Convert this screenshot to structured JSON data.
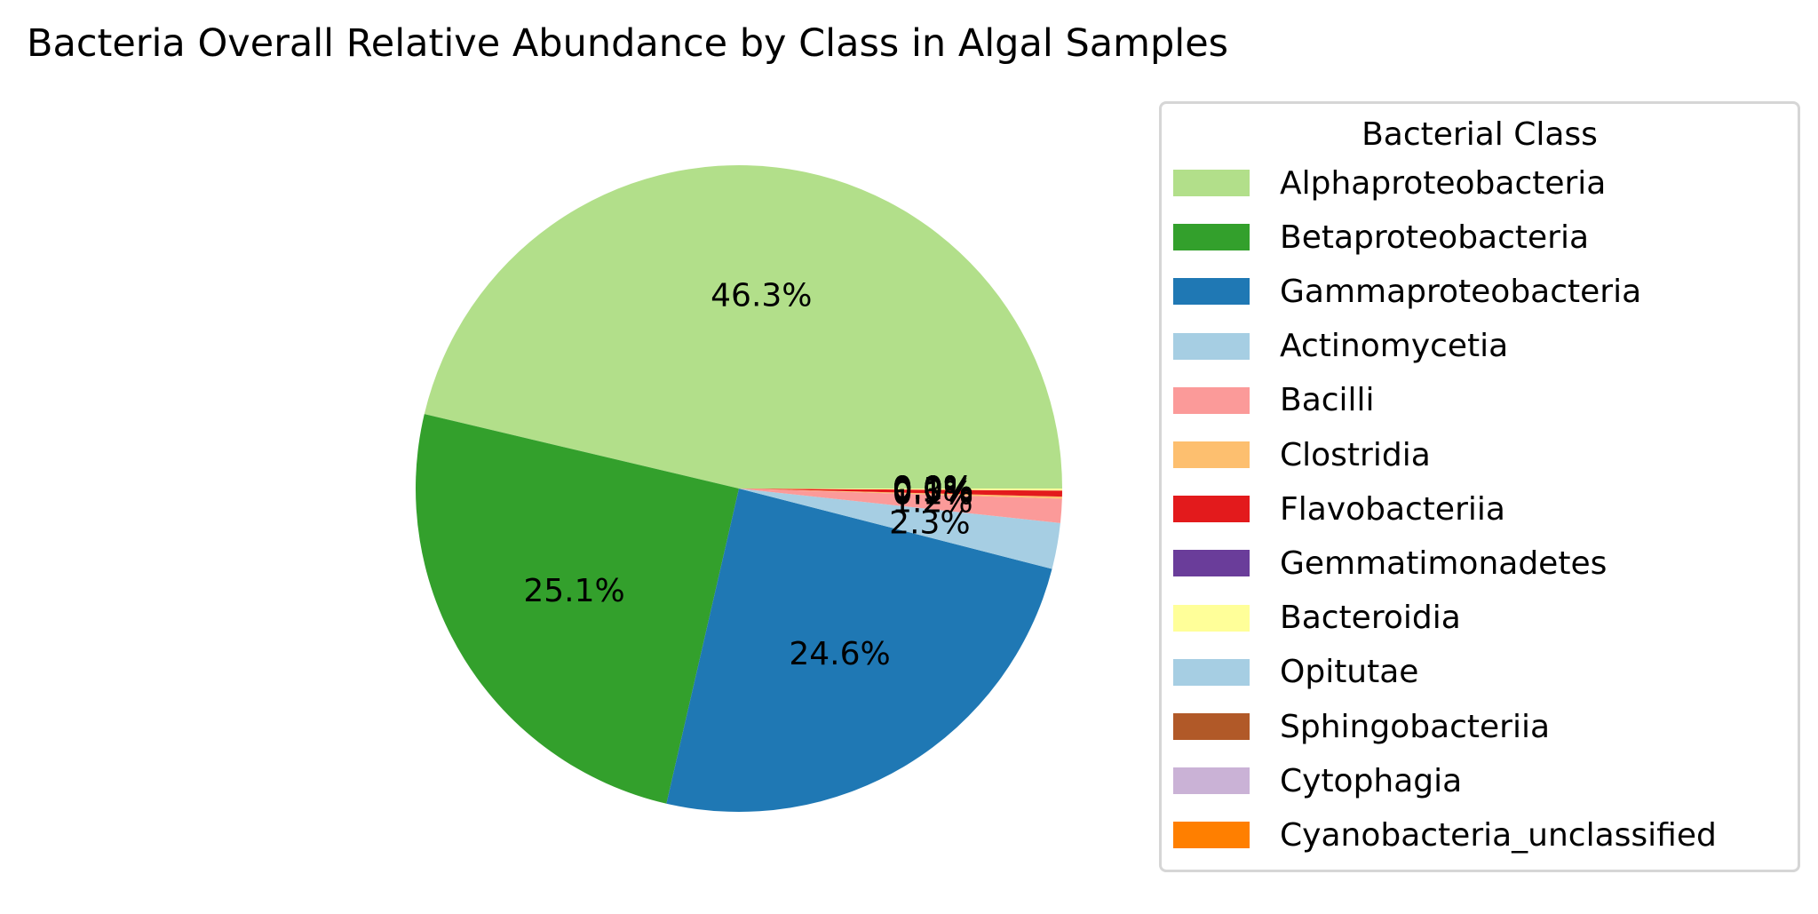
{
  "chart_data": {
    "type": "pie",
    "title": "Bacteria Overall Relative Abundance by Class in  Algal Samples",
    "legend_title": "Bacterial Class",
    "legend_position": "right",
    "slices": [
      {
        "label": "Alphaproteobacteria",
        "value": 46.3,
        "pct_label": "46.3%",
        "color": "#b2df8a"
      },
      {
        "label": "Betaproteobacteria",
        "value": 25.1,
        "pct_label": "25.1%",
        "color": "#33a02c"
      },
      {
        "label": "Gammaproteobacteria",
        "value": 24.6,
        "pct_label": "24.6%",
        "color": "#1f78b4"
      },
      {
        "label": "Actinomycetia",
        "value": 2.3,
        "pct_label": "2.3%",
        "color": "#a6cee3"
      },
      {
        "label": "Bacilli",
        "value": 1.2,
        "pct_label": "1.2%",
        "color": "#fb9a99"
      },
      {
        "label": "Clostridia",
        "value": 0.1,
        "pct_label": "0.1%",
        "color": "#fdbf6f"
      },
      {
        "label": "Flavobacteriia",
        "value": 0.3,
        "pct_label": "0.3%",
        "color": "#e31a1c"
      },
      {
        "label": "Gemmatimonadetes",
        "value": 0.0,
        "pct_label": "0.0%",
        "color": "#6a3d9a"
      },
      {
        "label": "Bacteroidia",
        "value": 0.1,
        "pct_label": "0.1%",
        "color": "#ffff99"
      },
      {
        "label": "Opitutae",
        "value": 0.0,
        "pct_label": "0.0%",
        "color": "#a6cee3"
      },
      {
        "label": "Sphingobacteriia",
        "value": 0.0,
        "pct_label": "0.0%",
        "color": "#b15928"
      },
      {
        "label": "Cytophagia",
        "value": 0.0,
        "pct_label": "0.0%",
        "color": "#cab2d6"
      },
      {
        "label": "Cyanobacteria_unclassified",
        "value": 0.0,
        "pct_label": "0.0%",
        "color": "#ff7f00"
      }
    ]
  }
}
